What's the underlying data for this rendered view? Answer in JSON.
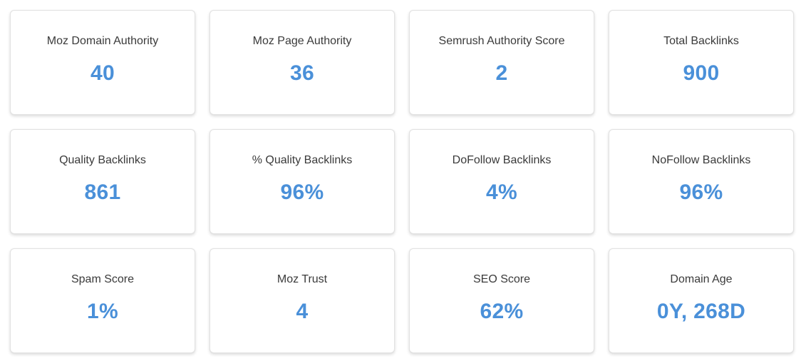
{
  "metrics": [
    {
      "label": "Moz Domain Authority",
      "value": "40"
    },
    {
      "label": "Moz Page Authority",
      "value": "36"
    },
    {
      "label": "Semrush Authority Score",
      "value": "2"
    },
    {
      "label": "Total Backlinks",
      "value": "900"
    },
    {
      "label": "Quality Backlinks",
      "value": "861"
    },
    {
      "label": "% Quality Backlinks",
      "value": "96%"
    },
    {
      "label": "DoFollow Backlinks",
      "value": "4%"
    },
    {
      "label": "NoFollow Backlinks",
      "value": "96%"
    },
    {
      "label": "Spam Score",
      "value": "1%"
    },
    {
      "label": "Moz Trust",
      "value": "4"
    },
    {
      "label": "SEO Score",
      "value": "62%"
    },
    {
      "label": "Domain Age",
      "value": "0Y, 268D"
    }
  ],
  "colors": {
    "value_accent": "#4a90d9",
    "label_text": "#3a3a3a",
    "card_border": "#e2e2e2"
  }
}
